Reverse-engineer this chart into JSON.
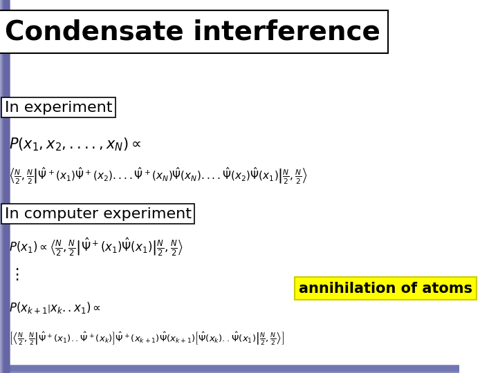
{
  "title": "Condensate interference",
  "background_gradient": true,
  "bg_color_left": "#8888bb",
  "bg_color_right": "#9999cc",
  "label_in_experiment": "In experiment",
  "label_in_computer_experiment": "In computer experiment",
  "annihilation_label": "annihilation of atoms",
  "annihilation_bg": "#ffff00",
  "title_fontsize": 28,
  "label_fontsize": 16,
  "eq_fontsize": 15,
  "ann_fontsize": 15,
  "eq1_line1": "$P(x_1, x_2,....,x_N) \\propto$",
  "eq1_line2": "$\\left\\langle \\frac{N}{2}, \\frac{N}{2} \\right| \\hat{\\Psi}^+(x_1)\\hat{\\Psi}^+(x_2)....\\hat{\\Psi}^+(x_N)\\hat{\\Psi}(x_N)....\\hat{\\Psi}(x_2)\\hat{\\Psi}(x_1) \\left| \\frac{N}{2}, \\frac{N}{2} \\right\\rangle$",
  "eq2_line1": "$P(x_1) \\propto \\left\\langle \\frac{N}{2}, \\frac{N}{2} \\right| \\hat{\\Psi}^+(x_1)\\hat{\\Psi}(x_1) \\left| \\frac{N}{2}, \\frac{N}{2} \\right\\rangle$",
  "eq2_ellipsis": "$\\vdots$",
  "eq3_line1": "$P(x_{k+1} \\left| x_k..x_1 \\right) \\propto$",
  "eq3_line2": "$\\left[ \\left\\langle \\frac{N}{2}, \\frac{N}{2} \\right| \\hat{\\Psi}^+(x_1)..\\hat{\\Psi}^+(x_k) \\right] \\hat{\\Psi}^+(x_{k+1})\\hat{\\Psi}(x_{k+1}) \\left[ \\hat{\\Psi}(x_k)..\\hat{\\Psi}(x_1) \\left| \\frac{N}{2}, \\frac{N}{2} \\right\\rangle \\right]$"
}
